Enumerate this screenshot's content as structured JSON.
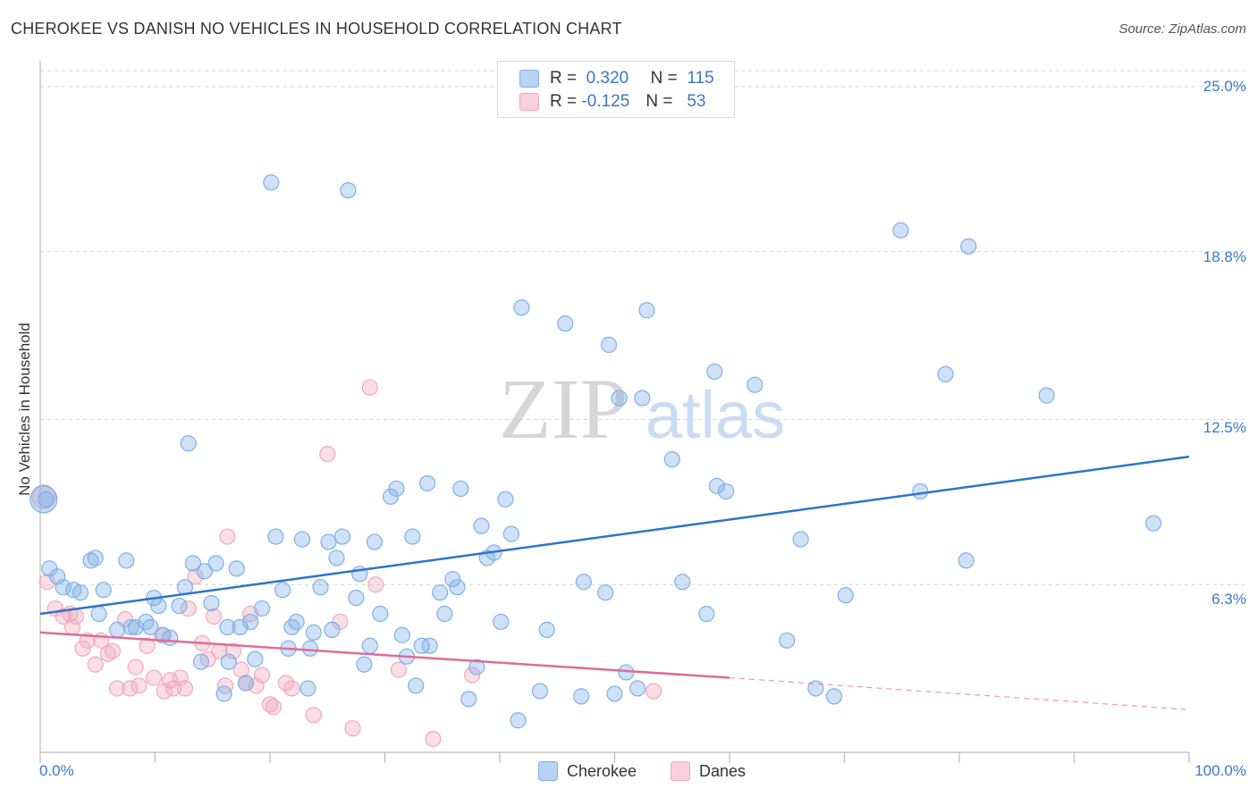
{
  "title": "CHEROKEE VS DANISH NO VEHICLES IN HOUSEHOLD CORRELATION CHART",
  "source": "Source: ZipAtlas.com",
  "watermark": {
    "zip": "ZIP",
    "atlas": "atlas"
  },
  "legend": {
    "rows": [
      {
        "r_label": "R =",
        "r_value": "0.320",
        "n_label": "N =",
        "n_value": "115"
      },
      {
        "r_label": "R =",
        "r_value": "-0.125",
        "n_label": "N =",
        "n_value": "53"
      }
    ]
  },
  "bottom_legend": {
    "cherokee": "Cherokee",
    "danes": "Danes"
  },
  "chart_data": {
    "type": "scatter",
    "ylabel": "No Vehicles in Household",
    "y_ticks": [
      "25.0%",
      "18.8%",
      "12.5%",
      "6.3%"
    ],
    "x_tick_labels": [
      "0.0%",
      "100.0%"
    ],
    "xlim": [
      0,
      100
    ],
    "ylim": [
      0,
      25.6
    ],
    "grid": true,
    "colors": {
      "cherokee": "#7fb0e8",
      "cherokee_line": "#2f72cc",
      "danes": "#f2a7be",
      "danes_line": "#e06b96"
    },
    "series": [
      {
        "name": "Cherokee",
        "trend": {
          "x": [
            0,
            100
          ],
          "y": [
            5.2,
            11.1
          ]
        },
        "points": [
          [
            0.8,
            6.9
          ],
          [
            1.5,
            6.6
          ],
          [
            2.0,
            6.2
          ],
          [
            2.9,
            6.1
          ],
          [
            3.5,
            6.0
          ],
          [
            4.4,
            7.2
          ],
          [
            4.8,
            7.3
          ],
          [
            5.1,
            5.2
          ],
          [
            5.5,
            6.1
          ],
          [
            6.7,
            4.6
          ],
          [
            7.5,
            7.2
          ],
          [
            7.9,
            4.7
          ],
          [
            8.3,
            4.7
          ],
          [
            9.2,
            4.9
          ],
          [
            9.6,
            4.7
          ],
          [
            9.9,
            5.8
          ],
          [
            10.3,
            5.5
          ],
          [
            10.7,
            4.4
          ],
          [
            11.3,
            4.3
          ],
          [
            12.1,
            5.5
          ],
          [
            12.6,
            6.2
          ],
          [
            12.9,
            11.6
          ],
          [
            13.3,
            7.1
          ],
          [
            14.0,
            3.4
          ],
          [
            14.3,
            6.8
          ],
          [
            14.9,
            5.6
          ],
          [
            15.3,
            7.1
          ],
          [
            16.0,
            2.2
          ],
          [
            16.3,
            4.7
          ],
          [
            17.1,
            6.9
          ],
          [
            17.4,
            4.7
          ],
          [
            17.9,
            2.6
          ],
          [
            18.3,
            4.9
          ],
          [
            18.7,
            3.5
          ],
          [
            19.3,
            5.4
          ],
          [
            20.1,
            21.4
          ],
          [
            20.5,
            8.1
          ],
          [
            21.1,
            6.1
          ],
          [
            21.6,
            3.9
          ],
          [
            21.9,
            4.7
          ],
          [
            22.3,
            4.9
          ],
          [
            22.8,
            8.0
          ],
          [
            23.3,
            2.4
          ],
          [
            23.5,
            3.9
          ],
          [
            24.4,
            6.2
          ],
          [
            25.1,
            7.9
          ],
          [
            25.4,
            4.6
          ],
          [
            25.8,
            7.3
          ],
          [
            26.3,
            8.1
          ],
          [
            26.8,
            21.1
          ],
          [
            27.5,
            5.8
          ],
          [
            27.8,
            6.7
          ],
          [
            28.2,
            3.3
          ],
          [
            28.7,
            4.0
          ],
          [
            29.1,
            7.9
          ],
          [
            29.6,
            5.2
          ],
          [
            30.5,
            9.6
          ],
          [
            31.0,
            9.9
          ],
          [
            31.5,
            4.4
          ],
          [
            31.9,
            3.6
          ],
          [
            32.4,
            8.1
          ],
          [
            32.7,
            2.5
          ],
          [
            33.2,
            4.0
          ],
          [
            33.7,
            10.1
          ],
          [
            34.8,
            6.0
          ],
          [
            35.2,
            5.2
          ],
          [
            35.9,
            6.5
          ],
          [
            36.3,
            6.2
          ],
          [
            36.6,
            9.9
          ],
          [
            37.3,
            2.0
          ],
          [
            38.0,
            3.2
          ],
          [
            38.4,
            8.5
          ],
          [
            38.9,
            7.3
          ],
          [
            39.5,
            7.5
          ],
          [
            40.1,
            4.9
          ],
          [
            40.5,
            9.5
          ],
          [
            41.0,
            8.2
          ],
          [
            41.6,
            1.2
          ],
          [
            41.9,
            16.7
          ],
          [
            43.5,
            2.3
          ],
          [
            44.1,
            4.6
          ],
          [
            45.7,
            16.1
          ],
          [
            47.1,
            2.1
          ],
          [
            47.3,
            6.4
          ],
          [
            49.2,
            6.0
          ],
          [
            49.5,
            15.3
          ],
          [
            50.0,
            2.2
          ],
          [
            50.4,
            13.3
          ],
          [
            51.0,
            3.0
          ],
          [
            52.0,
            2.4
          ],
          [
            52.4,
            13.3
          ],
          [
            52.8,
            16.6
          ],
          [
            55.0,
            11.0
          ],
          [
            55.9,
            6.4
          ],
          [
            58.0,
            5.2
          ],
          [
            58.7,
            14.3
          ],
          [
            58.9,
            10.0
          ],
          [
            59.7,
            9.8
          ],
          [
            62.2,
            13.8
          ],
          [
            65.0,
            4.2
          ],
          [
            66.2,
            8.0
          ],
          [
            67.5,
            2.4
          ],
          [
            69.1,
            2.1
          ],
          [
            70.1,
            5.9
          ],
          [
            74.9,
            19.6
          ],
          [
            76.6,
            9.8
          ],
          [
            78.8,
            14.2
          ],
          [
            80.6,
            7.2
          ],
          [
            80.8,
            19.0
          ],
          [
            87.6,
            13.4
          ],
          [
            96.9,
            8.6
          ],
          [
            0.5,
            9.5
          ],
          [
            33.9,
            4.0
          ],
          [
            16.4,
            3.4
          ],
          [
            23.8,
            4.5
          ]
        ]
      },
      {
        "name": "Danes",
        "trend": {
          "x": [
            0,
            60
          ],
          "y": [
            4.5,
            2.8
          ]
        },
        "trend_extension": {
          "x": [
            60,
            100
          ],
          "y": [
            2.8,
            1.6
          ]
        },
        "points": [
          [
            0.6,
            6.4
          ],
          [
            1.3,
            5.4
          ],
          [
            2.0,
            5.1
          ],
          [
            2.6,
            5.2
          ],
          [
            3.1,
            5.1
          ],
          [
            2.8,
            4.7
          ],
          [
            3.7,
            3.9
          ],
          [
            4.1,
            4.2
          ],
          [
            4.8,
            3.3
          ],
          [
            5.3,
            4.2
          ],
          [
            5.9,
            3.7
          ],
          [
            6.3,
            3.8
          ],
          [
            6.7,
            2.4
          ],
          [
            7.4,
            5.0
          ],
          [
            7.8,
            2.4
          ],
          [
            8.3,
            3.2
          ],
          [
            8.6,
            2.5
          ],
          [
            9.3,
            4.0
          ],
          [
            9.9,
            2.8
          ],
          [
            10.6,
            4.4
          ],
          [
            10.8,
            2.3
          ],
          [
            11.3,
            2.7
          ],
          [
            11.6,
            2.4
          ],
          [
            12.2,
            2.8
          ],
          [
            12.6,
            2.4
          ],
          [
            12.9,
            5.4
          ],
          [
            13.5,
            6.6
          ],
          [
            14.1,
            4.1
          ],
          [
            14.6,
            3.5
          ],
          [
            15.1,
            5.1
          ],
          [
            15.6,
            3.8
          ],
          [
            16.1,
            2.5
          ],
          [
            16.3,
            8.1
          ],
          [
            16.8,
            3.8
          ],
          [
            17.5,
            3.1
          ],
          [
            17.9,
            2.6
          ],
          [
            18.3,
            5.2
          ],
          [
            18.8,
            2.5
          ],
          [
            19.3,
            2.9
          ],
          [
            20.0,
            1.8
          ],
          [
            20.3,
            1.7
          ],
          [
            21.4,
            2.6
          ],
          [
            21.9,
            2.4
          ],
          [
            23.8,
            1.4
          ],
          [
            25.0,
            11.2
          ],
          [
            26.1,
            4.9
          ],
          [
            27.2,
            0.9
          ],
          [
            28.7,
            13.7
          ],
          [
            29.2,
            6.3
          ],
          [
            31.2,
            3.1
          ],
          [
            34.2,
            0.5
          ],
          [
            37.6,
            2.9
          ],
          [
            53.4,
            2.3
          ]
        ]
      }
    ]
  }
}
